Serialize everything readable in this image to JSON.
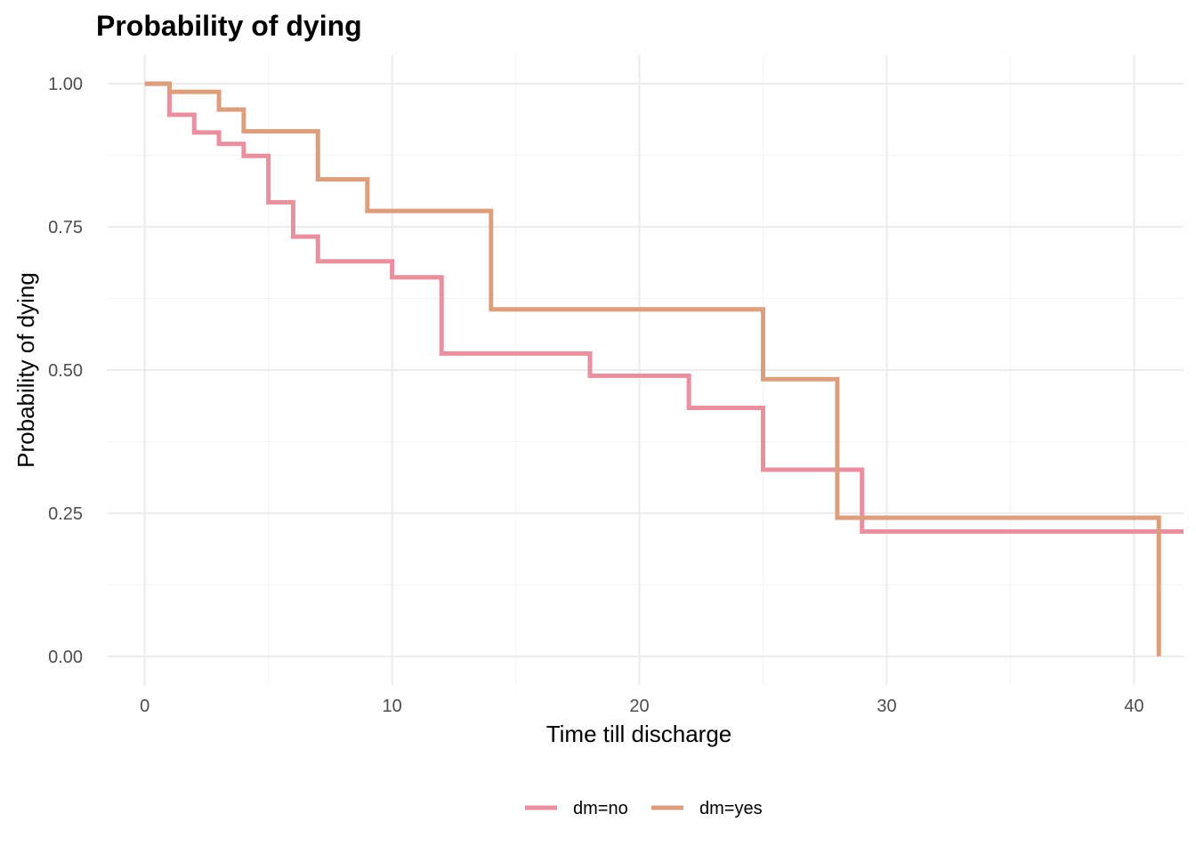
{
  "chart_data": {
    "type": "line",
    "step": true,
    "title": "Probability of dying",
    "xlabel": "Time till discharge",
    "ylabel": "Probability of dying",
    "xlim": [
      -1.5,
      42
    ],
    "ylim": [
      -0.05,
      1.05
    ],
    "x_ticks": [
      0,
      10,
      20,
      30,
      40
    ],
    "x_tick_labels": [
      "0",
      "10",
      "20",
      "30",
      "40"
    ],
    "y_ticks": [
      0,
      0.25,
      0.5,
      0.75,
      1.0
    ],
    "y_tick_labels": [
      "0.00",
      "0.25",
      "0.50",
      "0.75",
      "1.00"
    ],
    "grid": true,
    "legend_position": "bottom",
    "series": [
      {
        "name": "dm=no",
        "color": "#e8909f",
        "x": [
          0,
          1,
          2,
          3,
          4,
          5,
          6,
          7,
          10,
          12,
          18,
          22,
          25,
          29,
          42
        ],
        "y": [
          1.0,
          0.946,
          0.915,
          0.895,
          0.874,
          0.793,
          0.733,
          0.69,
          0.662,
          0.529,
          0.49,
          0.434,
          0.326,
          0.218,
          0.218
        ]
      },
      {
        "name": "dm=yes",
        "color": "#dc9f7d",
        "x": [
          0,
          1,
          3,
          4,
          7,
          9,
          14,
          25,
          28,
          41,
          41
        ],
        "y": [
          1.0,
          0.986,
          0.955,
          0.917,
          0.833,
          0.778,
          0.606,
          0.484,
          0.242,
          0.242,
          0.0
        ]
      }
    ]
  }
}
